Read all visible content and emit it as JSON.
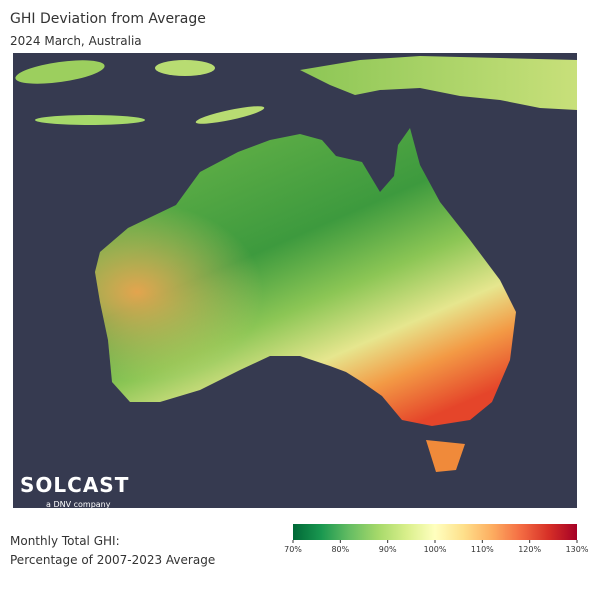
{
  "header": {
    "title": "GHI Deviation from Average",
    "subtitle": "2024 March, Australia"
  },
  "logo": {
    "name": "SOLCAST",
    "tagline": "a DNV company"
  },
  "colorbar": {
    "label_lines": [
      "Monthly Total GHI:",
      "Percentage of 2007-2023 Average"
    ],
    "range": [
      70,
      130
    ],
    "ticks": [
      {
        "value": 70,
        "label": "70%"
      },
      {
        "value": 80,
        "label": "80%"
      },
      {
        "value": 90,
        "label": "90%"
      },
      {
        "value": 100,
        "label": "100%"
      },
      {
        "value": 110,
        "label": "110%"
      },
      {
        "value": 120,
        "label": "120%"
      },
      {
        "value": 130,
        "label": "130%"
      }
    ],
    "colors": [
      "#006837",
      "#1a9850",
      "#66bd63",
      "#a6d96a",
      "#d9ef8b",
      "#ffffbf",
      "#fee08b",
      "#fdae61",
      "#f46d43",
      "#d73027",
      "#a50026"
    ]
  }
}
